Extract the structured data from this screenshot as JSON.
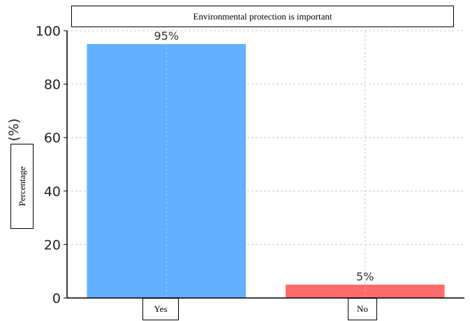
{
  "chart_data": {
    "type": "bar",
    "title": "Environmental protection is important",
    "categories": [
      "Yes",
      "No"
    ],
    "values": [
      95,
      5
    ],
    "data_labels": [
      "95%",
      "5%"
    ],
    "colors": [
      "#62b0ff",
      "#ff6b6b"
    ],
    "ylabel": "Percentage",
    "ylabel_unit": "(%)",
    "xlabel": "",
    "ylim": [
      0,
      100
    ],
    "yticks": [
      0,
      20,
      40,
      60,
      80,
      100
    ],
    "grid": true,
    "legend": "none"
  }
}
